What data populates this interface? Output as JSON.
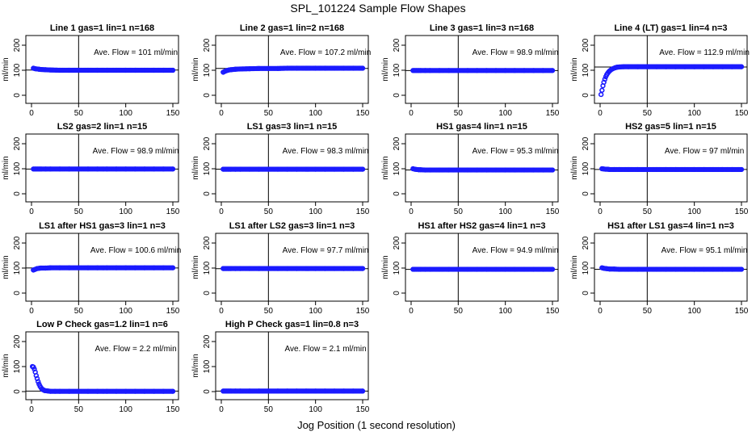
{
  "figure": {
    "title": "SPL_101224  Sample Flow Shapes",
    "xlabel": "Jog Position (1 second resolution)"
  },
  "colors": {
    "points": "#1a1aff",
    "axes": "#000000",
    "background": "#ffffff"
  },
  "chart_data": [
    {
      "type": "scatter",
      "title": "Line 1 gas=1 lin=1 n=168",
      "ylabel": "ml/min",
      "annotation": "Ave. Flow =  101  ml/min",
      "xlim": [
        0,
        150
      ],
      "ylim": [
        0,
        200
      ],
      "xticks": [
        0,
        50,
        100,
        150
      ],
      "yticks": [
        0,
        100,
        200
      ],
      "vline": 50,
      "hline": 101,
      "x": [
        2,
        4,
        6,
        8,
        10,
        15,
        20,
        30,
        40,
        50,
        60,
        70,
        80,
        90,
        100,
        110,
        120,
        130,
        140,
        150
      ],
      "y": [
        108,
        106,
        105,
        104,
        103,
        102,
        101,
        100,
        100,
        100,
        100,
        100,
        100,
        100,
        100,
        100,
        100,
        100,
        100,
        100
      ]
    },
    {
      "type": "scatter",
      "title": "Line 2 gas=1 lin=2 n=168",
      "ylabel": "ml/min",
      "annotation": "Ave. Flow =  107.2  ml/min",
      "xlim": [
        0,
        150
      ],
      "ylim": [
        0,
        200
      ],
      "xticks": [
        0,
        50,
        100,
        150
      ],
      "yticks": [
        0,
        100,
        200
      ],
      "vline": 50,
      "hline": 107.2,
      "x": [
        2,
        4,
        6,
        8,
        10,
        15,
        20,
        30,
        40,
        50,
        60,
        70,
        80,
        90,
        100,
        110,
        120,
        130,
        140,
        150
      ],
      "y": [
        92,
        96,
        99,
        101,
        102,
        104,
        105,
        106,
        107,
        107,
        107,
        108,
        108,
        108,
        108,
        108,
        108,
        108,
        108,
        108
      ]
    },
    {
      "type": "scatter",
      "title": "Line 3 gas=1 lin=3 n=168",
      "ylabel": "ml/min",
      "annotation": "Ave. Flow =  98.9  ml/min",
      "xlim": [
        0,
        150
      ],
      "ylim": [
        0,
        200
      ],
      "xticks": [
        0,
        50,
        100,
        150
      ],
      "yticks": [
        0,
        100,
        200
      ],
      "vline": 50,
      "hline": 98.9,
      "x": [
        2,
        4,
        6,
        8,
        10,
        15,
        20,
        30,
        40,
        50,
        60,
        70,
        80,
        90,
        100,
        110,
        120,
        130,
        140,
        150
      ],
      "y": [
        99,
        99,
        99,
        99,
        99,
        99,
        99,
        99,
        99,
        99,
        99,
        99,
        99,
        99,
        99,
        99,
        99,
        99,
        99,
        99
      ]
    },
    {
      "type": "scatter",
      "title": "Line 4 (LT) gas=1 lin=4 n=3",
      "ylabel": "ml/min",
      "annotation": "Ave. Flow =  112.9  ml/min",
      "xlim": [
        0,
        150
      ],
      "ylim": [
        0,
        200
      ],
      "xticks": [
        0,
        50,
        100,
        150
      ],
      "yticks": [
        0,
        100,
        200
      ],
      "vline": 50,
      "hline": 112.9,
      "x": [
        1,
        2,
        3,
        4,
        5,
        6,
        7,
        8,
        9,
        10,
        12,
        14,
        16,
        18,
        20,
        25,
        30,
        40,
        50,
        60,
        70,
        80,
        90,
        100,
        110,
        120,
        130,
        140,
        150
      ],
      "y": [
        3,
        20,
        38,
        52,
        64,
        74,
        82,
        88,
        93,
        97,
        103,
        107,
        110,
        112,
        113,
        114,
        114,
        114,
        114,
        114,
        114,
        114,
        114,
        114,
        114,
        114,
        114,
        114,
        114
      ]
    },
    {
      "type": "scatter",
      "title": "LS2 gas=2 lin=1 n=15",
      "ylabel": "ml/min",
      "annotation": "Ave. Flow =  98.9  ml/min",
      "xlim": [
        0,
        150
      ],
      "ylim": [
        0,
        200
      ],
      "xticks": [
        0,
        50,
        100,
        150
      ],
      "yticks": [
        0,
        100,
        200
      ],
      "vline": 50,
      "hline": 98.9,
      "x": [
        2,
        4,
        6,
        8,
        10,
        15,
        20,
        30,
        40,
        50,
        60,
        70,
        80,
        90,
        100,
        110,
        120,
        130,
        140,
        150
      ],
      "y": [
        99,
        99,
        99,
        99,
        99,
        99,
        99,
        99,
        99,
        99,
        99,
        99,
        99,
        99,
        99,
        99,
        99,
        99,
        99,
        99
      ]
    },
    {
      "type": "scatter",
      "title": "LS1 gas=3 lin=1 n=15",
      "ylabel": "ml/min",
      "annotation": "Ave. Flow =  98.3  ml/min",
      "xlim": [
        0,
        150
      ],
      "ylim": [
        0,
        200
      ],
      "xticks": [
        0,
        50,
        100,
        150
      ],
      "yticks": [
        0,
        100,
        200
      ],
      "vline": 50,
      "hline": 98.3,
      "x": [
        2,
        4,
        6,
        8,
        10,
        15,
        20,
        30,
        40,
        50,
        60,
        70,
        80,
        90,
        100,
        110,
        120,
        130,
        140,
        150
      ],
      "y": [
        98,
        98,
        98,
        98,
        98,
        98,
        98,
        98,
        98,
        98,
        98,
        98,
        98,
        98,
        98,
        98,
        98,
        98,
        98,
        98
      ]
    },
    {
      "type": "scatter",
      "title": "HS1 gas=4 lin=1 n=15",
      "ylabel": "ml/min",
      "annotation": "Ave. Flow =  95.3  ml/min",
      "xlim": [
        0,
        150
      ],
      "ylim": [
        0,
        200
      ],
      "xticks": [
        0,
        50,
        100,
        150
      ],
      "yticks": [
        0,
        100,
        200
      ],
      "vline": 50,
      "hline": 95.3,
      "x": [
        2,
        4,
        6,
        8,
        10,
        15,
        20,
        30,
        40,
        50,
        60,
        70,
        80,
        90,
        100,
        110,
        120,
        130,
        140,
        150
      ],
      "y": [
        100,
        98,
        97,
        96,
        96,
        95,
        95,
        95,
        95,
        95,
        95,
        95,
        95,
        95,
        95,
        95,
        95,
        95,
        95,
        95
      ]
    },
    {
      "type": "scatter",
      "title": "HS2 gas=5 lin=1 n=15",
      "ylabel": "ml/min",
      "annotation": "Ave. Flow =  97  ml/min",
      "xlim": [
        0,
        150
      ],
      "ylim": [
        0,
        200
      ],
      "xticks": [
        0,
        50,
        100,
        150
      ],
      "yticks": [
        0,
        100,
        200
      ],
      "vline": 50,
      "hline": 97,
      "x": [
        2,
        4,
        6,
        8,
        10,
        15,
        20,
        30,
        40,
        50,
        60,
        70,
        80,
        90,
        100,
        110,
        120,
        130,
        140,
        150
      ],
      "y": [
        100,
        99,
        98,
        98,
        97,
        97,
        97,
        97,
        97,
        97,
        97,
        97,
        97,
        97,
        97,
        97,
        97,
        97,
        97,
        97
      ]
    },
    {
      "type": "scatter",
      "title": "LS1 after HS1 gas=3 lin=1 n=3",
      "ylabel": "ml/min",
      "annotation": "Ave. Flow =  100.6  ml/min",
      "xlim": [
        0,
        150
      ],
      "ylim": [
        0,
        200
      ],
      "xticks": [
        0,
        50,
        100,
        150
      ],
      "yticks": [
        0,
        100,
        200
      ],
      "vline": 50,
      "hline": 100.6,
      "x": [
        2,
        4,
        6,
        8,
        10,
        15,
        20,
        30,
        40,
        50,
        60,
        70,
        80,
        90,
        100,
        110,
        120,
        130,
        140,
        150
      ],
      "y": [
        92,
        95,
        98,
        99,
        100,
        100,
        101,
        101,
        101,
        101,
        101,
        101,
        101,
        101,
        101,
        101,
        101,
        101,
        101,
        101
      ]
    },
    {
      "type": "scatter",
      "title": "LS1 after LS2 gas=3 lin=1 n=3",
      "ylabel": "ml/min",
      "annotation": "Ave. Flow =  97.7  ml/min",
      "xlim": [
        0,
        150
      ],
      "ylim": [
        0,
        200
      ],
      "xticks": [
        0,
        50,
        100,
        150
      ],
      "yticks": [
        0,
        100,
        200
      ],
      "vline": 50,
      "hline": 97.7,
      "x": [
        2,
        4,
        6,
        8,
        10,
        15,
        20,
        30,
        40,
        50,
        60,
        70,
        80,
        90,
        100,
        110,
        120,
        130,
        140,
        150
      ],
      "y": [
        98,
        98,
        98,
        98,
        98,
        98,
        98,
        98,
        98,
        98,
        98,
        98,
        98,
        98,
        98,
        98,
        98,
        98,
        98,
        98
      ]
    },
    {
      "type": "scatter",
      "title": "HS1 after HS2 gas=4 lin=1 n=3",
      "ylabel": "ml/min",
      "annotation": "Ave. Flow =  94.9  ml/min",
      "xlim": [
        0,
        150
      ],
      "ylim": [
        0,
        200
      ],
      "xticks": [
        0,
        50,
        100,
        150
      ],
      "yticks": [
        0,
        100,
        200
      ],
      "vline": 50,
      "hline": 94.9,
      "x": [
        2,
        4,
        6,
        8,
        10,
        15,
        20,
        30,
        40,
        50,
        60,
        70,
        80,
        90,
        100,
        110,
        120,
        130,
        140,
        150
      ],
      "y": [
        95,
        95,
        95,
        95,
        95,
        95,
        95,
        95,
        95,
        95,
        95,
        95,
        95,
        95,
        95,
        95,
        95,
        95,
        95,
        95
      ]
    },
    {
      "type": "scatter",
      "title": "HS1 after LS1 gas=4 lin=1 n=3",
      "ylabel": "ml/min",
      "annotation": "Ave. Flow =  95.1  ml/min",
      "xlim": [
        0,
        150
      ],
      "ylim": [
        0,
        200
      ],
      "xticks": [
        0,
        50,
        100,
        150
      ],
      "yticks": [
        0,
        100,
        200
      ],
      "vline": 50,
      "hline": 95.1,
      "x": [
        2,
        4,
        6,
        8,
        10,
        15,
        20,
        30,
        40,
        50,
        60,
        70,
        80,
        90,
        100,
        110,
        120,
        130,
        140,
        150
      ],
      "y": [
        101,
        99,
        98,
        97,
        96,
        96,
        95,
        95,
        95,
        95,
        95,
        95,
        95,
        95,
        95,
        95,
        95,
        95,
        95,
        95
      ]
    },
    {
      "type": "scatter",
      "title": "Low P Check gas=1.2 lin=1 n=6",
      "ylabel": "ml/min",
      "annotation": "Ave. Flow =  2.2  ml/min",
      "xlim": [
        0,
        150
      ],
      "ylim": [
        0,
        200
      ],
      "xticks": [
        0,
        50,
        100,
        150
      ],
      "yticks": [
        0,
        100,
        200
      ],
      "vline": 50,
      "hline": 2.2,
      "x": [
        1,
        2,
        3,
        4,
        5,
        6,
        7,
        8,
        9,
        10,
        11,
        12,
        13,
        14,
        16,
        18,
        20,
        25,
        30,
        40,
        50,
        60,
        70,
        80,
        90,
        100,
        110,
        120,
        130,
        140,
        150
      ],
      "y": [
        100,
        98,
        90,
        78,
        64,
        52,
        40,
        30,
        22,
        16,
        11,
        8,
        6,
        4,
        3,
        2,
        1,
        1,
        1,
        1,
        1,
        1,
        1,
        1,
        1,
        1,
        1,
        1,
        1,
        1,
        1
      ]
    },
    {
      "type": "scatter",
      "title": "High P Check gas=1 lin=0.8 n=3",
      "ylabel": "ml/min",
      "annotation": "Ave. Flow =  2.1  ml/min",
      "xlim": [
        0,
        150
      ],
      "ylim": [
        0,
        200
      ],
      "xticks": [
        0,
        50,
        100,
        150
      ],
      "yticks": [
        0,
        100,
        200
      ],
      "vline": 50,
      "hline": 2.1,
      "x": [
        2,
        4,
        6,
        8,
        10,
        15,
        20,
        30,
        40,
        50,
        60,
        70,
        80,
        90,
        100,
        110,
        120,
        130,
        140,
        150
      ],
      "y": [
        2,
        2,
        2,
        2,
        2,
        2,
        2,
        2,
        2,
        2,
        2,
        2,
        2,
        2,
        2,
        2,
        2,
        2,
        2,
        2
      ]
    }
  ]
}
